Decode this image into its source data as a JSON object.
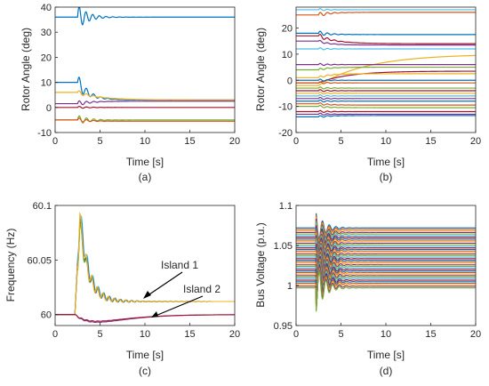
{
  "chart_data": [
    {
      "type": "line",
      "caption": "(a)",
      "xlabel": "Time [s]",
      "ylabel": "Rotor Angle (deg)",
      "xlim": [
        0,
        20
      ],
      "ylim": [
        -10,
        40
      ],
      "xticks": [
        "0",
        "5",
        "10",
        "15",
        "20"
      ],
      "yticks": [
        "-10",
        "0",
        "10",
        "20",
        "30",
        "40"
      ],
      "grid": false,
      "disturbance_time": 2.5,
      "series": [
        {
          "color": "#0072BD",
          "pre": 36,
          "final": 36,
          "osc": 5,
          "decay": 0.9,
          "period": 0.75
        },
        {
          "color": "#0072BD",
          "pre": 10,
          "final": 3,
          "osc": 3.5,
          "decay": 0.8,
          "period": 0.8
        },
        {
          "color": "#EDB120",
          "pre": 6,
          "final": 3,
          "osc": 1,
          "decay": 0.4,
          "period": 0.8
        },
        {
          "color": "#7E2F8E",
          "pre": 1.5,
          "final": 2.5,
          "osc": 1.2,
          "decay": 0.6,
          "period": 0.8
        },
        {
          "color": "#A2142F",
          "pre": 0,
          "final": 0,
          "osc": 0.5,
          "decay": 0.8,
          "period": 0.8
        },
        {
          "color": "#77AC30",
          "pre": -5,
          "final": -5,
          "osc": 2,
          "decay": 0.8,
          "period": 0.8
        },
        {
          "color": "#D95319",
          "pre": -5,
          "final": -5.5,
          "osc": 1,
          "decay": 0.8,
          "period": 0.8
        }
      ]
    },
    {
      "type": "line",
      "caption": "(b)",
      "xlabel": "Time [s]",
      "ylabel": "Rotor Angle (deg)",
      "xlim": [
        0,
        20
      ],
      "ylim": [
        -20,
        28
      ],
      "xticks": [
        "0",
        "5",
        "10",
        "15",
        "20"
      ],
      "yticks": [
        "-20",
        "-10",
        "0",
        "10",
        "20"
      ],
      "grid": false,
      "disturbance_time": 2.5,
      "series": [
        {
          "color": "#4DBEEE",
          "pre": 27,
          "final": 27,
          "osc": 0.5,
          "decay": 0.8,
          "period": 0.8
        },
        {
          "color": "#D95319",
          "pre": 25,
          "final": 26,
          "osc": 1,
          "decay": 0.8,
          "period": 0.8
        },
        {
          "color": "#0072BD",
          "pre": 18,
          "final": 17.5,
          "osc": 1,
          "decay": 0.8,
          "period": 0.8
        },
        {
          "color": "#A2142F",
          "pre": 17,
          "final": 14,
          "osc": 1,
          "decay": 0.5,
          "period": 0.8
        },
        {
          "color": "#7E2F8E",
          "pre": 15,
          "final": 13.5,
          "osc": 0.5,
          "decay": 0.8,
          "period": 0.8
        },
        {
          "color": "#4DBEEE",
          "pre": 12,
          "final": 12,
          "osc": 0.5,
          "decay": 0.8,
          "period": 0.8
        },
        {
          "color": "#EDB120",
          "pre": -2,
          "final": 10,
          "osc": 0,
          "decay": 0.18,
          "period": 1
        },
        {
          "color": "#7E2F8E",
          "pre": 6,
          "final": 6,
          "osc": 0.5,
          "decay": 0.8,
          "period": 0.8
        },
        {
          "color": "#77AC30",
          "pre": 4,
          "final": 5,
          "osc": 0.5,
          "decay": 0.8,
          "period": 0.8
        },
        {
          "color": "#A2142F",
          "pre": -1,
          "final": 3.5,
          "osc": 0,
          "decay": 0.3,
          "period": 1
        },
        {
          "color": "#EDB120",
          "pre": 1,
          "final": 2.5,
          "osc": 0.5,
          "decay": 0.8,
          "period": 0.8
        },
        {
          "color": "#0072BD",
          "pre": 0,
          "final": 0,
          "osc": 0.5,
          "decay": 0.8,
          "period": 0.8
        },
        {
          "color": "#D95319",
          "pre": -1,
          "final": -1,
          "osc": 0.5,
          "decay": 0.8,
          "period": 0.8
        },
        {
          "color": "#77AC30",
          "pre": -3,
          "final": -3,
          "osc": 0.5,
          "decay": 0.8,
          "period": 0.8
        },
        {
          "color": "#A2142F",
          "pre": -4,
          "final": -4,
          "osc": 0.5,
          "decay": 0.8,
          "period": 0.8
        },
        {
          "color": "#EDB120",
          "pre": -5,
          "final": -5,
          "osc": 0.5,
          "decay": 0.8,
          "period": 0.8
        },
        {
          "color": "#4DBEEE",
          "pre": -6,
          "final": -6,
          "osc": 0.5,
          "decay": 0.8,
          "period": 0.8
        },
        {
          "color": "#7E2F8E",
          "pre": -7,
          "final": -7,
          "osc": 0.5,
          "decay": 0.8,
          "period": 0.8
        },
        {
          "color": "#0072BD",
          "pre": -8,
          "final": -8,
          "osc": 0.5,
          "decay": 0.8,
          "period": 0.8
        },
        {
          "color": "#D95319",
          "pre": -9,
          "final": -9.5,
          "osc": 0.5,
          "decay": 0.8,
          "period": 0.8
        },
        {
          "color": "#77AC30",
          "pre": -10,
          "final": -10.5,
          "osc": 0.5,
          "decay": 0.8,
          "period": 0.8
        },
        {
          "color": "#A2142F",
          "pre": -12,
          "final": -12,
          "osc": 0.5,
          "decay": 0.8,
          "period": 0.8
        },
        {
          "color": "#7E2F8E",
          "pre": -13,
          "final": -13,
          "osc": 0.5,
          "decay": 0.8,
          "period": 0.8
        },
        {
          "color": "#0072BD",
          "pre": -14,
          "final": -13.5,
          "osc": 0.5,
          "decay": 0.8,
          "period": 0.8
        }
      ]
    },
    {
      "type": "line",
      "caption": "(c)",
      "xlabel": "Time [s]",
      "ylabel": "Frequency (Hz)",
      "xlim": [
        0,
        20
      ],
      "ylim": [
        59.99,
        60.1
      ],
      "xticks": [
        "0",
        "5",
        "10",
        "15",
        "20"
      ],
      "yticks": [
        "60",
        "60.05",
        "60.1"
      ],
      "grid": false,
      "disturbance_time": 2.2,
      "island1_final": 60.012,
      "island1_peak": 60.095,
      "island2_final": 60.0,
      "island2_dip": 59.993,
      "series": [
        {
          "color": "#4DBEEE",
          "group": "island1",
          "peak": 60.095,
          "osc": 0.014
        },
        {
          "color": "#0072BD",
          "group": "island1",
          "peak": 60.09,
          "osc": 0.012
        },
        {
          "color": "#7E2F8E",
          "group": "island1",
          "peak": 60.085,
          "osc": 0.011
        },
        {
          "color": "#77AC30",
          "group": "island1",
          "peak": 60.082,
          "osc": 0.01
        },
        {
          "color": "#EDB120",
          "group": "island1",
          "peak": 60.088,
          "osc": 0.012
        },
        {
          "color": "#7E2F8E",
          "group": "island2",
          "dip": 59.993
        },
        {
          "color": "#A2142F",
          "group": "island2",
          "dip": 59.994
        }
      ],
      "annotations": [
        "Island 1",
        "Island 2"
      ]
    },
    {
      "type": "line",
      "caption": "(d)",
      "xlabel": "Time [s]",
      "ylabel": "Bus Voltage (p.u.)",
      "xlim": [
        0,
        20
      ],
      "ylim": [
        0.95,
        1.1
      ],
      "xticks": [
        "0",
        "5",
        "10",
        "15",
        "20"
      ],
      "yticks": [
        "0.95",
        "1",
        "1.05",
        "1.1"
      ],
      "grid": false,
      "disturbance_time": 2.2,
      "series_count": 40,
      "v_min": 0.997,
      "v_max": 1.072,
      "colors": [
        "#0072BD",
        "#D95319",
        "#EDB120",
        "#7E2F8E",
        "#77AC30",
        "#4DBEEE",
        "#A2142F"
      ]
    }
  ]
}
